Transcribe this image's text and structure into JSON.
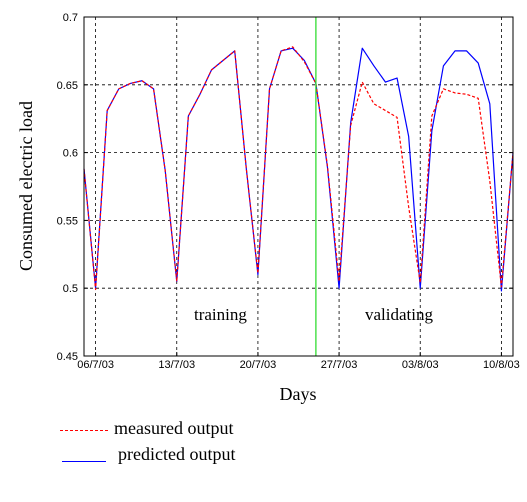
{
  "chart_data": {
    "type": "line",
    "xlabel": "Days",
    "ylabel": "Consumed electric load",
    "ylim": [
      0.45,
      0.7
    ],
    "yticks": [
      0.45,
      0.5,
      0.55,
      0.6,
      0.65,
      0.7
    ],
    "ytick_labels": [
      "0.45",
      "0.5",
      "0.55",
      "0.6",
      "0.65",
      "0.7"
    ],
    "xlim": [
      "2003-07-05",
      "2003-08-11"
    ],
    "xticks": [
      "2003-07-06",
      "2003-07-13",
      "2003-07-20",
      "2003-07-27",
      "2003-08-03",
      "2003-08-10"
    ],
    "xtick_labels": [
      "06/7/03",
      "13/7/03",
      "20/7/03",
      "27/7/03",
      "03/8/03",
      "10/8/03"
    ],
    "grid": true,
    "divider_date": "2003-07-25",
    "annotations": {
      "training": "training",
      "validating": "validating"
    },
    "x": [
      "2003-07-05",
      "2003-07-06",
      "2003-07-07",
      "2003-07-08",
      "2003-07-09",
      "2003-07-10",
      "2003-07-11",
      "2003-07-12",
      "2003-07-13",
      "2003-07-14",
      "2003-07-15",
      "2003-07-16",
      "2003-07-17",
      "2003-07-18",
      "2003-07-19",
      "2003-07-20",
      "2003-07-21",
      "2003-07-22",
      "2003-07-23",
      "2003-07-24",
      "2003-07-25",
      "2003-07-26",
      "2003-07-27",
      "2003-07-28",
      "2003-07-29",
      "2003-07-30",
      "2003-07-31",
      "2003-08-01",
      "2003-08-02",
      "2003-08-03",
      "2003-08-04",
      "2003-08-05",
      "2003-08-06",
      "2003-08-07",
      "2003-08-08",
      "2003-08-09",
      "2003-08-10",
      "2003-08-11"
    ],
    "series": [
      {
        "name": "measured output",
        "color": "#ff0000",
        "style": "dashed",
        "values": [
          0.588,
          0.499,
          0.631,
          0.647,
          0.651,
          0.653,
          0.647,
          0.587,
          0.505,
          0.627,
          0.643,
          0.661,
          0.668,
          0.675,
          0.588,
          0.511,
          0.647,
          0.675,
          0.678,
          0.667,
          0.651,
          0.59,
          0.505,
          0.62,
          0.652,
          0.636,
          0.631,
          0.626,
          0.56,
          0.504,
          0.627,
          0.647,
          0.644,
          0.643,
          0.64,
          0.579,
          0.501,
          0.6
        ]
      },
      {
        "name": "predicted output",
        "color": "#0000ff",
        "style": "solid",
        "values": [
          0.588,
          0.5,
          0.631,
          0.647,
          0.651,
          0.653,
          0.647,
          0.587,
          0.505,
          0.627,
          0.643,
          0.661,
          0.668,
          0.675,
          0.588,
          0.51,
          0.647,
          0.675,
          0.677,
          0.668,
          0.651,
          0.589,
          0.5,
          0.622,
          0.677,
          0.664,
          0.652,
          0.655,
          0.612,
          0.5,
          0.616,
          0.664,
          0.675,
          0.675,
          0.666,
          0.636,
          0.498,
          0.6
        ]
      }
    ]
  },
  "legend": {
    "items": [
      {
        "label": "measured output",
        "color": "#ff0000",
        "style": "dashed"
      },
      {
        "label": "predicted output",
        "color": "#0000ff",
        "style": "solid"
      }
    ]
  }
}
